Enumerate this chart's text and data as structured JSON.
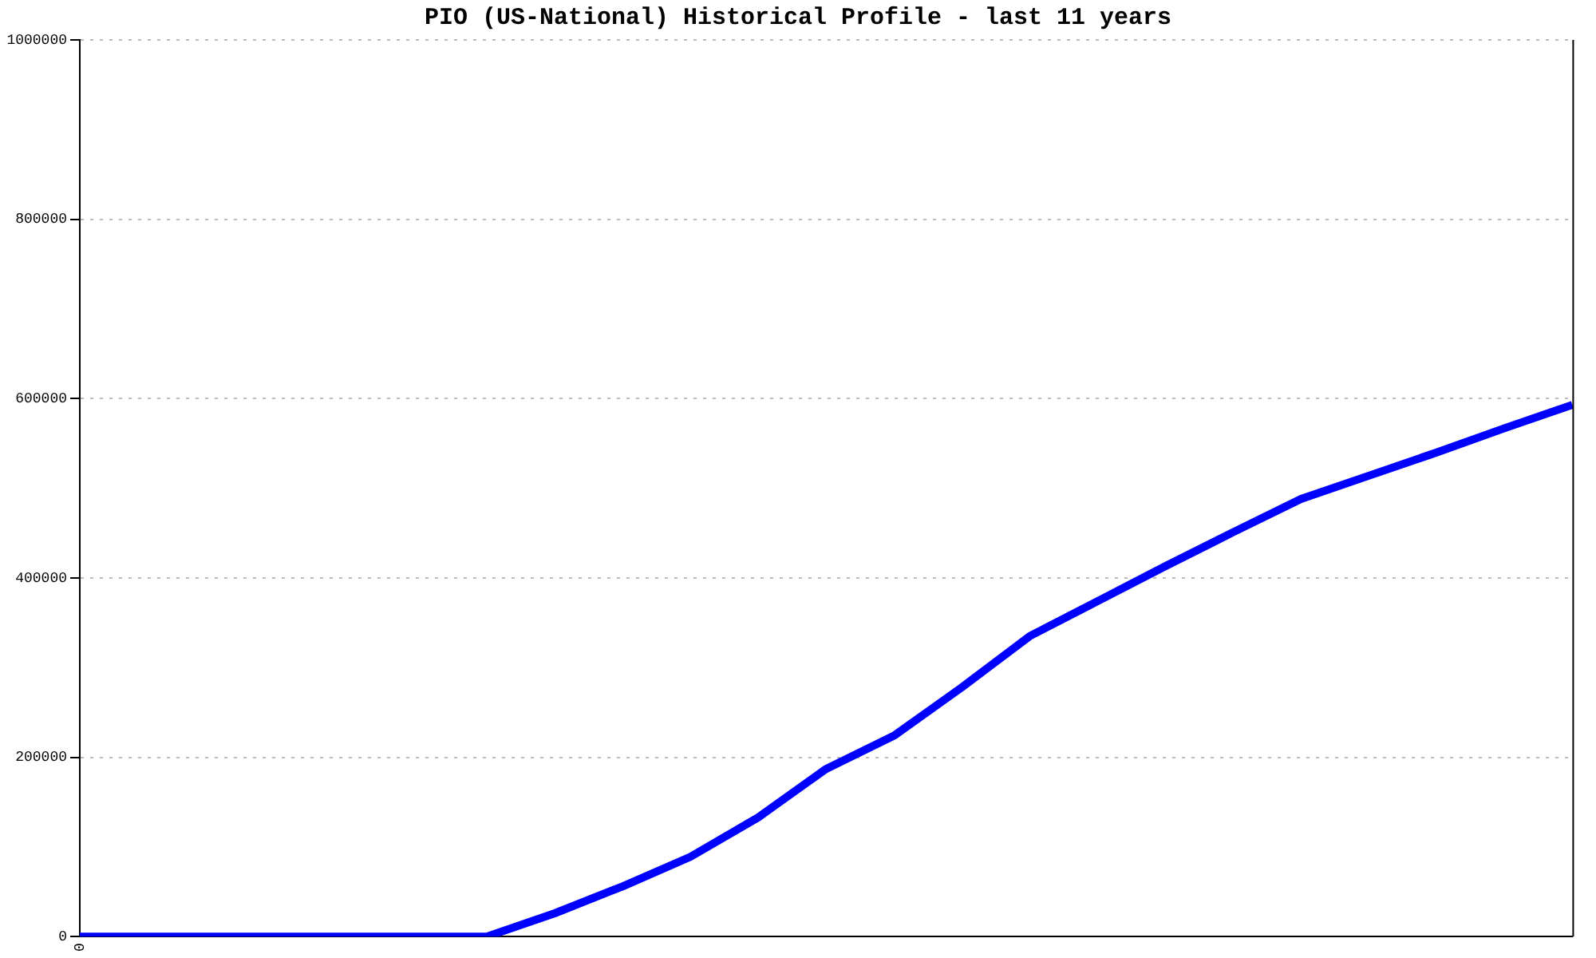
{
  "chart_data": {
    "type": "line",
    "title": "PIO (US-National) Historical Profile - last 11 years",
    "categories": [
      "0",
      null,
      null,
      null,
      null,
      null,
      null,
      null,
      null,
      null,
      null,
      null,
      null,
      null,
      null,
      null,
      null,
      null,
      null,
      null,
      null,
      null,
      null
    ],
    "series": [
      {
        "color": "#0000ff",
        "values": [
          0,
          0,
          0,
          0,
          0,
          0,
          0,
          26000,
          56000,
          89000,
          133000,
          187000,
          224000,
          278000,
          335000,
          374000,
          413000,
          451000,
          488000,
          514000,
          540000,
          567000,
          593000
        ]
      }
    ],
    "ylim": [
      0,
      1000000
    ],
    "yticks": [
      0,
      200000,
      400000,
      600000,
      800000,
      1000000
    ],
    "grid": "y",
    "legend": false,
    "marker": "none",
    "line_style": "solid"
  }
}
